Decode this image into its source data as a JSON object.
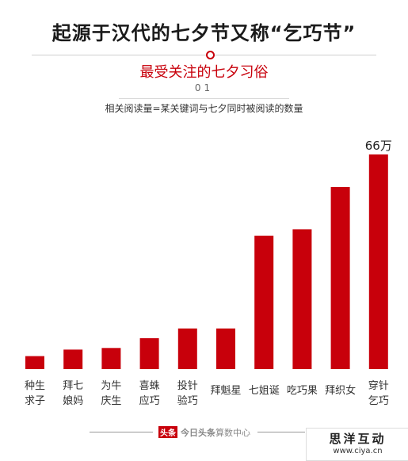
{
  "header": {
    "title": "起源于汉代的七夕节又称“乞巧节”",
    "subtitle": "最受关注的七夕习俗",
    "number": "01",
    "note": "相关阅读量=某关键词与七夕同时被阅读的数量"
  },
  "chart_data": {
    "type": "bar",
    "categories": [
      [
        "种生",
        "求子"
      ],
      [
        "拜七",
        "娘妈"
      ],
      [
        "为牛",
        "庆生"
      ],
      [
        "喜蛛",
        "应巧"
      ],
      [
        "投针",
        "验巧"
      ],
      [
        "拜魁星"
      ],
      [
        "七姐诞"
      ],
      [
        "吃巧果"
      ],
      [
        "拜织女"
      ],
      [
        "穿针",
        "乞巧"
      ]
    ],
    "values": [
      4,
      6,
      6.5,
      9.5,
      12.5,
      12.5,
      41,
      43,
      56,
      66
    ],
    "data_labels": [
      "",
      "",
      "",
      "",
      "",
      "",
      "",
      "",
      "",
      "66万"
    ],
    "ylim": [
      0,
      66
    ],
    "bar_color": "#c8000b",
    "grid": false
  },
  "footer": {
    "logo": "头条",
    "brand": "今日头条",
    "text": "算数中心"
  },
  "watermark": {
    "title": "思洋互动",
    "url": "www.ciya.cn"
  }
}
